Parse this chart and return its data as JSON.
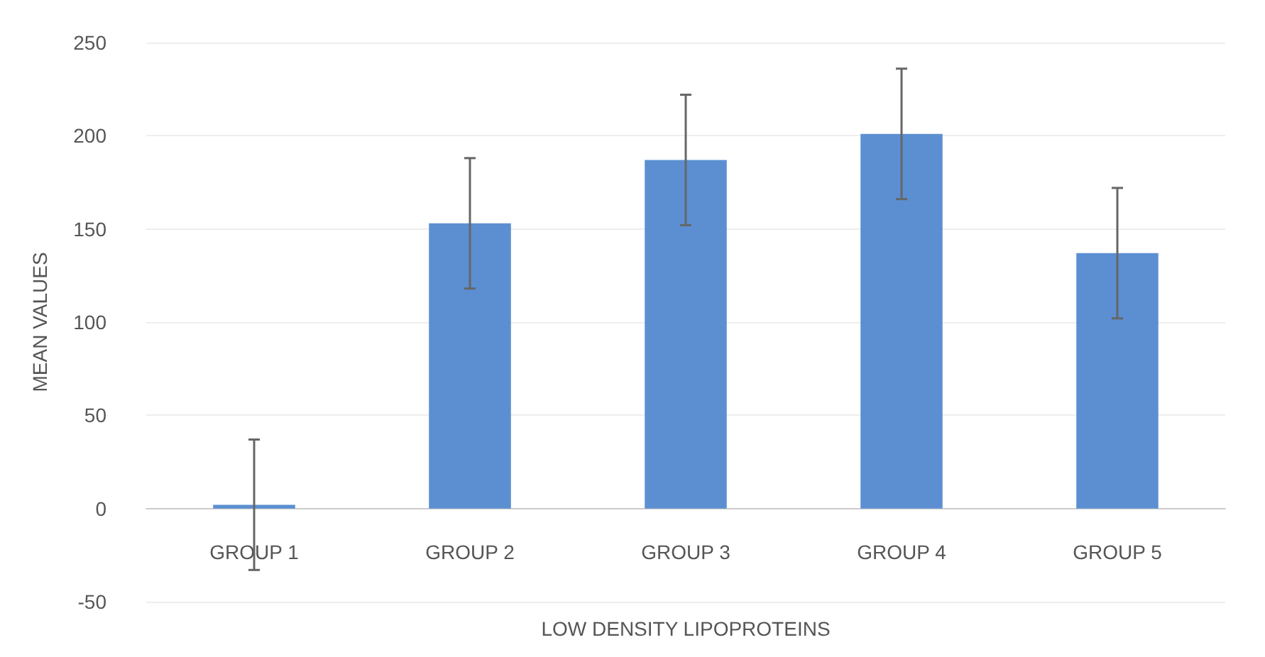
{
  "chart_data": {
    "type": "bar",
    "xlabel": "LOW DENSITY LIPOPROTEINS",
    "ylabel": "MEAN VALUES",
    "categories": [
      "GROUP 1",
      "GROUP 2",
      "GROUP 3",
      "GROUP 4",
      "GROUP 5"
    ],
    "values": [
      2,
      153,
      187,
      201,
      137
    ],
    "errors": [
      35,
      35,
      35,
      35,
      35
    ],
    "color": "#5b8fd2",
    "ylim": [
      -50,
      250
    ],
    "yticks": [
      -50,
      0,
      50,
      100,
      150,
      200,
      250
    ],
    "grid": "y"
  }
}
